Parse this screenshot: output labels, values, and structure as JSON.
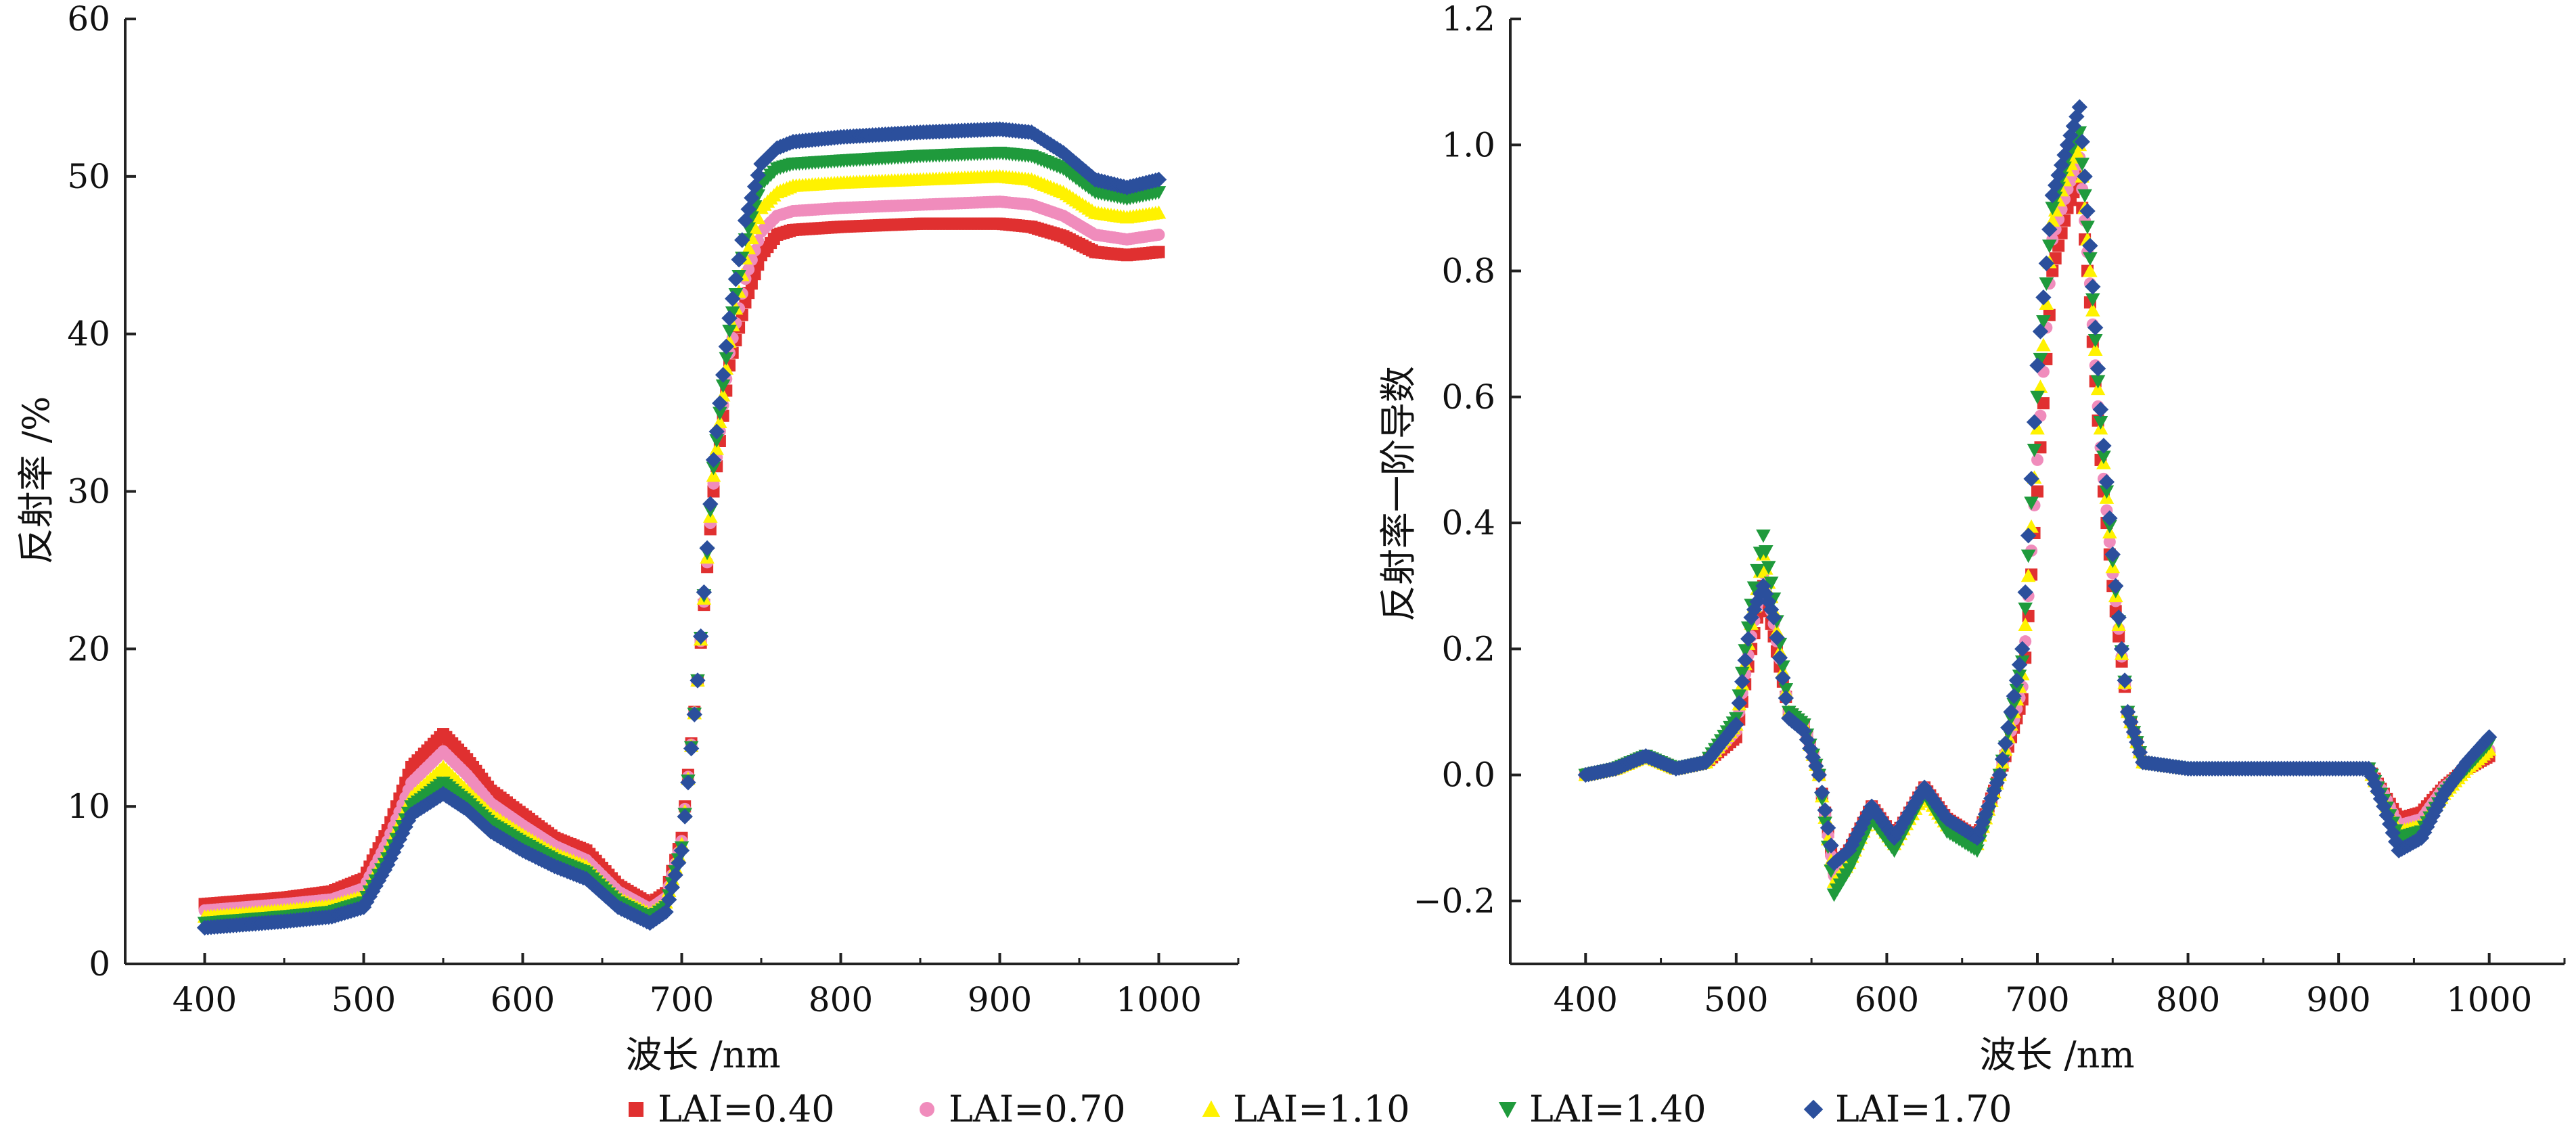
{
  "colors": {
    "LAI=0.40": "#e03030",
    "LAI=0.70": "#f08cbc",
    "LAI=1.10": "#fff200",
    "LAI=1.40": "#1f9a3c",
    "LAI=1.70": "#2b4f9c"
  },
  "legend": [
    {
      "label": "LAI=0.40",
      "marker": "square"
    },
    {
      "label": "LAI=0.70",
      "marker": "circle"
    },
    {
      "label": "LAI=1.10",
      "marker": "triangle-up"
    },
    {
      "label": "LAI=1.40",
      "marker": "triangle-down"
    },
    {
      "label": "LAI=1.70",
      "marker": "diamond"
    }
  ],
  "chart_data": [
    {
      "type": "scatter",
      "xlabel": "波长 /nm",
      "ylabel": "反射率 /%",
      "xlim": [
        350,
        1050
      ],
      "ylim": [
        0,
        60
      ],
      "xticks": [
        400,
        500,
        600,
        700,
        800,
        900,
        1000
      ],
      "yticks": [
        0,
        10,
        20,
        30,
        40,
        50,
        60
      ],
      "x": [
        400,
        450,
        480,
        500,
        515,
        530,
        550,
        565,
        580,
        600,
        620,
        640,
        660,
        680,
        690,
        700,
        710,
        720,
        730,
        740,
        750,
        760,
        770,
        800,
        850,
        900,
        920,
        940,
        960,
        980,
        1000
      ],
      "series": [
        {
          "name": "LAI=0.40",
          "values": [
            3.8,
            4.2,
            4.6,
            5.4,
            8.5,
            12.5,
            14.6,
            13.0,
            11.0,
            9.5,
            8.0,
            7.2,
            5.0,
            3.8,
            4.5,
            8.0,
            18.0,
            30.0,
            38.0,
            42.0,
            45.0,
            46.3,
            46.6,
            46.8,
            47.0,
            47.0,
            46.8,
            46.2,
            45.2,
            45.0,
            45.2
          ]
        },
        {
          "name": "LAI=0.70",
          "values": [
            3.4,
            3.8,
            4.1,
            4.8,
            7.8,
            11.5,
            13.5,
            12.0,
            10.2,
            8.8,
            7.5,
            6.6,
            4.6,
            3.5,
            4.2,
            7.8,
            18.0,
            30.5,
            38.8,
            43.5,
            46.5,
            47.5,
            47.8,
            48.0,
            48.2,
            48.4,
            48.2,
            47.5,
            46.3,
            46.0,
            46.3
          ]
        },
        {
          "name": "LAI=1.10",
          "values": [
            3.0,
            3.4,
            3.7,
            4.3,
            7.2,
            10.6,
            12.5,
            11.0,
            9.5,
            8.2,
            7.0,
            6.2,
            4.2,
            3.2,
            3.9,
            7.6,
            18.0,
            31.0,
            39.5,
            44.8,
            48.0,
            49.0,
            49.4,
            49.6,
            49.8,
            50.0,
            49.8,
            49.0,
            47.7,
            47.4,
            47.7
          ]
        },
        {
          "name": "LAI=1.40",
          "values": [
            2.6,
            3.0,
            3.3,
            3.9,
            6.7,
            10.0,
            11.5,
            10.3,
            8.9,
            7.7,
            6.6,
            5.8,
            3.9,
            2.9,
            3.6,
            7.4,
            18.0,
            31.5,
            40.2,
            46.0,
            49.5,
            50.5,
            50.8,
            51.0,
            51.3,
            51.5,
            51.3,
            50.5,
            49.0,
            48.6,
            49.0
          ]
        },
        {
          "name": "LAI=1.70",
          "values": [
            2.3,
            2.7,
            3.0,
            3.6,
            6.3,
            9.5,
            10.8,
            9.8,
            8.4,
            7.2,
            6.2,
            5.4,
            3.6,
            2.6,
            3.3,
            7.2,
            18.0,
            32.0,
            41.0,
            47.2,
            50.8,
            51.8,
            52.2,
            52.5,
            52.8,
            53.0,
            52.8,
            51.5,
            49.8,
            49.3,
            49.8
          ]
        }
      ]
    },
    {
      "type": "scatter",
      "xlabel": "波长 /nm",
      "ylabel": "反射率一阶导数",
      "xlim": [
        350,
        1050
      ],
      "ylim": [
        -0.3,
        1.2
      ],
      "xticks": [
        400,
        500,
        600,
        700,
        800,
        900,
        1000
      ],
      "yticks": [
        -0.2,
        0.0,
        0.2,
        0.4,
        0.6,
        0.8,
        1.0,
        1.2
      ],
      "ytick_labels": [
        "−0.2",
        "0.0",
        "0.2",
        "0.4",
        "0.6",
        "0.8",
        "1.0",
        "1.2"
      ],
      "x": [
        400,
        420,
        440,
        460,
        480,
        500,
        510,
        518,
        525,
        535,
        545,
        555,
        565,
        575,
        590,
        605,
        625,
        640,
        660,
        675,
        690,
        700,
        710,
        720,
        728,
        735,
        742,
        750,
        760,
        770,
        800,
        850,
        900,
        920,
        930,
        940,
        955,
        970,
        985,
        1000
      ],
      "series": [
        {
          "name": "LAI=0.40",
          "values": [
            0.0,
            0.01,
            0.03,
            0.01,
            0.02,
            0.06,
            0.2,
            0.3,
            0.22,
            0.1,
            0.08,
            0.0,
            -0.15,
            -0.12,
            -0.05,
            -0.1,
            -0.02,
            -0.07,
            -0.1,
            0.0,
            0.12,
            0.45,
            0.8,
            0.9,
            0.95,
            0.75,
            0.5,
            0.3,
            0.1,
            0.02,
            0.01,
            0.01,
            0.01,
            0.01,
            -0.03,
            -0.07,
            -0.06,
            -0.02,
            0.01,
            0.03
          ]
        },
        {
          "name": "LAI=0.70",
          "values": [
            0.0,
            0.01,
            0.03,
            0.01,
            0.02,
            0.07,
            0.22,
            0.32,
            0.24,
            0.1,
            0.08,
            0.0,
            -0.16,
            -0.13,
            -0.05,
            -0.1,
            -0.02,
            -0.07,
            -0.1,
            0.0,
            0.14,
            0.5,
            0.85,
            0.93,
            0.98,
            0.78,
            0.52,
            0.32,
            0.1,
            0.02,
            0.01,
            0.01,
            0.01,
            0.01,
            -0.03,
            -0.08,
            -0.07,
            -0.02,
            0.01,
            0.04
          ]
        },
        {
          "name": "LAI=1.10",
          "values": [
            0.0,
            0.01,
            0.03,
            0.01,
            0.02,
            0.08,
            0.24,
            0.35,
            0.26,
            0.1,
            0.08,
            0.0,
            -0.17,
            -0.14,
            -0.06,
            -0.11,
            -0.03,
            -0.08,
            -0.11,
            0.0,
            0.16,
            0.55,
            0.88,
            0.96,
            1.0,
            0.8,
            0.55,
            0.33,
            0.1,
            0.02,
            0.01,
            0.01,
            0.01,
            0.01,
            -0.04,
            -0.09,
            -0.08,
            -0.03,
            0.01,
            0.04
          ]
        },
        {
          "name": "LAI=1.40",
          "values": [
            0.0,
            0.01,
            0.03,
            0.01,
            0.02,
            0.09,
            0.27,
            0.38,
            0.28,
            0.1,
            0.08,
            0.0,
            -0.19,
            -0.15,
            -0.07,
            -0.12,
            -0.03,
            -0.09,
            -0.12,
            0.0,
            0.18,
            0.6,
            0.9,
            0.98,
            1.02,
            0.82,
            0.56,
            0.34,
            0.1,
            0.02,
            0.01,
            0.01,
            0.01,
            0.01,
            -0.04,
            -0.1,
            -0.09,
            -0.03,
            0.01,
            0.05
          ]
        },
        {
          "name": "LAI=1.70",
          "values": [
            0.0,
            0.01,
            0.03,
            0.01,
            0.02,
            0.08,
            0.25,
            0.3,
            0.25,
            0.09,
            0.07,
            0.0,
            -0.14,
            -0.12,
            -0.05,
            -0.1,
            -0.02,
            -0.07,
            -0.1,
            0.0,
            0.2,
            0.65,
            0.92,
            1.0,
            1.06,
            0.84,
            0.58,
            0.35,
            0.1,
            0.02,
            0.01,
            0.01,
            0.01,
            0.01,
            -0.05,
            -0.12,
            -0.1,
            -0.03,
            0.02,
            0.06
          ]
        }
      ]
    }
  ]
}
